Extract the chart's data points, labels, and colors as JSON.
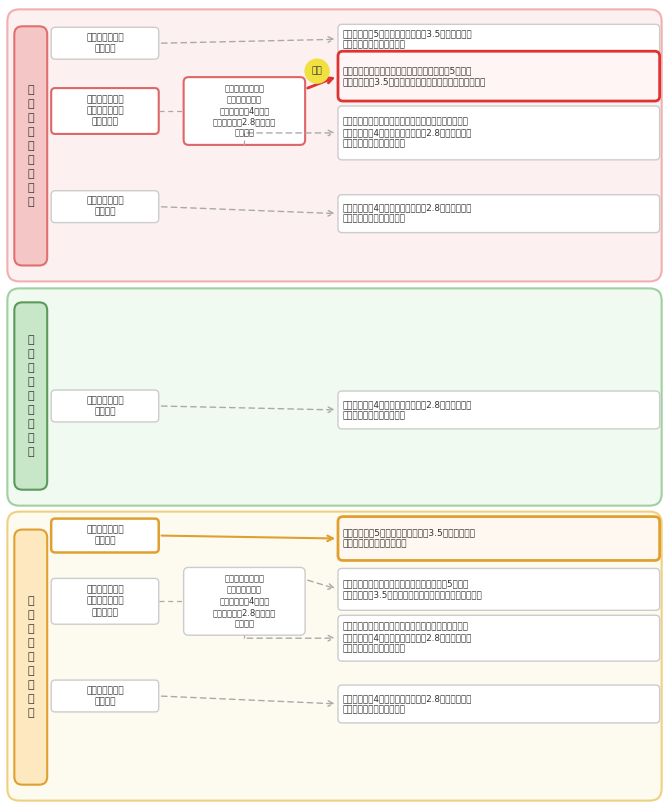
{
  "bg": "#ffffff",
  "sec1_bg": "#fdf0f0",
  "sec1_border": "#f0b0b0",
  "sec1_lbl_bg": "#f5c6c6",
  "sec1_lbl_border": "#e07070",
  "sec1_label": "一\n般\n生\n命\n保\n険\n料\n控\n除",
  "sec1_b1": "旧制度適用契約\nのみ加入",
  "sec1_b2": "旧制度適用契約\n新制度適用契約\n両方に加入",
  "sec1_b3": "新制度適用契約\nのみ加入",
  "sec1_q": "旧制度適用契約の\n保険料控除額が\n所得税の場合4万円・\n住民税の場合2.8万円以上\nですか？",
  "sec1_hai": "はい",
  "sec1_r0": "所得税の場合5万円・住民税の場合3.5万円を限度に\n控除する〈旧制度を適用〉",
  "sec1_r1": "旧制度適用契約のみを選択し、所得税の場合5万円・\n住民税の場合3.5万円を限度に控除する〈旧制度を適用〉",
  "sec1_r2": "旧制度適用契約と新制度適用契約の控除額の合計で、\n所得税の場合4万円・住民税の場合2.8万円を限度に\n控除する〈新制度を適用〉",
  "sec1_r3": "所得税の場合4万円・住民税の場合2.8万円を限度に\n控除する〈新制度を適用〉",
  "sec2_bg": "#f0faf0",
  "sec2_border": "#a0d0a0",
  "sec2_lbl_bg": "#c8e6c8",
  "sec2_lbl_border": "#5a9a5a",
  "sec2_label": "介\n護\n医\n療\n保\n険\n料\n控\n除",
  "sec2_b1": "新制度適用契約\nのみ加入",
  "sec2_r1": "所得税の場合4万円・住民税の場合2.8万円を限度に\n控除する〈新制度を適用〉",
  "sec3_bg": "#fdfaf0",
  "sec3_border": "#f0d080",
  "sec3_lbl_bg": "#fde8c0",
  "sec3_lbl_border": "#e0a030",
  "sec3_label": "個\n人\n年\n金\n保\n険\n料\n控\n除",
  "sec3_b1": "旧制度適用契約\nのみ加入",
  "sec3_b2": "旧制度適用契約\n新制度適用契約\n両方に加入",
  "sec3_b3": "新制度適用契約\nのみ加入",
  "sec3_q": "旧制度適用契約の\n保険料控除額が\n所得税の場合4万円・\n住民税の場合2.8万円以上\nですか？",
  "sec3_r0": "所得税の場合5万円・住民税の場合3.5万円を限度に\n控除する〈旧制度を適用〉",
  "sec3_r1": "旧制度適用契約のみを選択し、所得税の場合5万円・\n住民税の場合3.5万円を限度に控除する〈旧制度を適用〉",
  "sec3_r2": "旧制度適用契約と新制度適用契約の控除額の合計で、\n所得税の場合4万円・住民税の場合2.8万円を限度に\n控除する〈新制度を適用〉",
  "sec3_r3": "所得税の場合4万円・住民税の場合2.8万円を限度に\n控除する〈新制度を適用〉",
  "arrow_color": "#aaaaaa",
  "highlight_red": "#dd3333",
  "highlight_red_bg": "#fff5f5",
  "highlight_orange": "#e0a030",
  "highlight_orange_bg": "#fff8f0",
  "box_border_red": "#dd6666",
  "box_border_orange": "#e0a030",
  "box_border_gray": "#cccccc",
  "text_color": "#333333"
}
